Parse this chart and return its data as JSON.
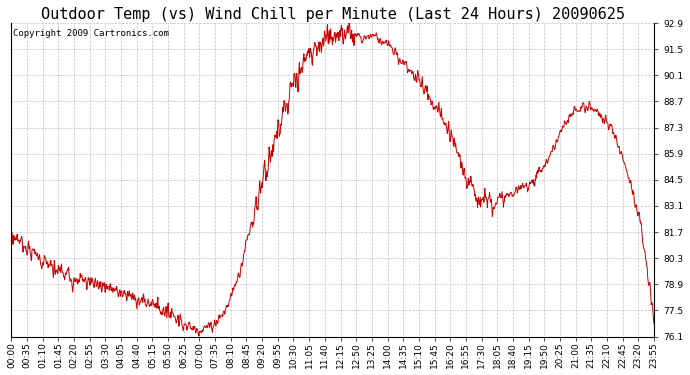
{
  "title": "Outdoor Temp (vs) Wind Chill per Minute (Last 24 Hours) 20090625",
  "copyright_text": "Copyright 2009 Cartronics.com",
  "line_color": "#cc0000",
  "background_color": "#ffffff",
  "grid_color": "#bbbbbb",
  "ylim": [
    76.1,
    92.9
  ],
  "yticks": [
    76.1,
    77.5,
    78.9,
    80.3,
    81.7,
    83.1,
    84.5,
    85.9,
    87.3,
    88.7,
    90.1,
    91.5,
    92.9
  ],
  "xtick_labels": [
    "00:00",
    "00:35",
    "01:10",
    "01:45",
    "02:20",
    "02:55",
    "03:30",
    "04:05",
    "04:40",
    "05:15",
    "05:50",
    "06:25",
    "07:00",
    "07:35",
    "08:10",
    "08:45",
    "09:20",
    "09:55",
    "10:30",
    "11:05",
    "11:40",
    "12:15",
    "12:50",
    "13:25",
    "14:00",
    "14:35",
    "15:10",
    "15:45",
    "16:20",
    "16:55",
    "17:30",
    "18:05",
    "18:40",
    "19:15",
    "19:50",
    "20:25",
    "21:00",
    "21:35",
    "22:10",
    "22:45",
    "23:20",
    "23:55"
  ],
  "title_fontsize": 11,
  "tick_fontsize": 6.5,
  "copyright_fontsize": 6.5,
  "keypoints_x": [
    0,
    30,
    60,
    90,
    120,
    150,
    180,
    210,
    240,
    270,
    300,
    330,
    360,
    375,
    385,
    395,
    410,
    430,
    450,
    480,
    510,
    540,
    570,
    600,
    630,
    660,
    690,
    720,
    750,
    780,
    810,
    840,
    870,
    900,
    930,
    960,
    990,
    1020,
    1050,
    1080,
    1110,
    1140,
    1170,
    1200,
    1230,
    1260,
    1290,
    1320,
    1350,
    1380,
    1410,
    1439
  ],
  "keypoints_y": [
    81.5,
    81.0,
    80.3,
    79.8,
    79.4,
    79.2,
    79.0,
    78.8,
    78.5,
    78.3,
    78.0,
    77.7,
    77.3,
    77.0,
    76.8,
    76.65,
    76.5,
    76.55,
    76.7,
    77.5,
    79.5,
    82.5,
    85.0,
    87.5,
    89.5,
    91.0,
    91.8,
    92.2,
    92.5,
    92.6,
    92.3,
    91.8,
    91.0,
    90.2,
    89.2,
    88.0,
    86.5,
    84.5,
    83.5,
    83.3,
    83.6,
    84.0,
    84.5,
    85.5,
    87.0,
    88.2,
    88.5,
    88.0,
    87.0,
    85.0,
    82.0,
    77.0
  ],
  "noise_seed": 7,
  "noise_scale": 0.25
}
